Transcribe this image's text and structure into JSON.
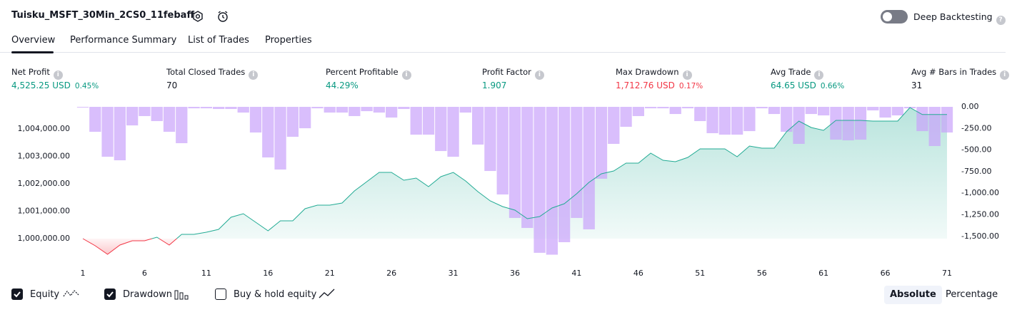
{
  "header": {
    "title": "Tuisku_MSFT_30Min_2CS0_11febaff",
    "toggle_label": "Deep Backtesting"
  },
  "tabs": [
    "Overview",
    "Performance Summary",
    "List of Trades",
    "Properties"
  ],
  "metrics": [
    {
      "label": "Net Profit",
      "value": "4,525.25 USD",
      "percent": "0.45%",
      "color": "#089981"
    },
    {
      "label": "Total Closed Trades",
      "value": "70",
      "color": "#131722"
    },
    {
      "label": "Percent Profitable",
      "value": "44.29%",
      "color": "#089981"
    },
    {
      "label": "Profit Factor",
      "value": "1.907",
      "color": "#089981"
    },
    {
      "label": "Max Drawdown",
      "value": "1,712.76 USD",
      "percent": "0.17%",
      "color": "#f23645"
    },
    {
      "label": "Avg Trade",
      "value": "64.65 USD",
      "percent": "0.66%",
      "color": "#089981"
    },
    {
      "label": "Avg # Bars in Trades",
      "value": "31",
      "color": "#131722"
    }
  ],
  "chart_data": {
    "type": "equity-drawdown",
    "x": [
      1,
      2,
      3,
      4,
      5,
      6,
      7,
      8,
      9,
      10,
      11,
      12,
      13,
      14,
      15,
      16,
      17,
      18,
      19,
      20,
      21,
      22,
      23,
      24,
      25,
      26,
      27,
      28,
      29,
      30,
      31,
      32,
      33,
      34,
      35,
      36,
      37,
      38,
      39,
      40,
      41,
      42,
      43,
      44,
      45,
      46,
      47,
      48,
      49,
      50,
      51,
      52,
      53,
      54,
      55,
      56,
      57,
      58,
      59,
      60,
      61,
      62,
      63,
      64,
      65,
      66,
      67,
      68,
      69,
      70,
      71
    ],
    "series": [
      {
        "name": "Equity",
        "color": "#22ab94",
        "negative_color": "#f23645",
        "axis": "y",
        "values": [
          1000000,
          999740,
          999430,
          999766,
          999922,
          999922,
          1000052,
          999766,
          1000156,
          1000156,
          1000234,
          1000338,
          1000779,
          1000909,
          1000597,
          1000286,
          1000649,
          1000649,
          1001091,
          1001221,
          1001221,
          1001299,
          1001740,
          1002078,
          1002416,
          1002416,
          1002130,
          1002208,
          1001896,
          1002260,
          1002416,
          1002104,
          1001714,
          1001377,
          1001169,
          1001039,
          1000727,
          1000805,
          1001117,
          1001273,
          1001636,
          1002052,
          1002364,
          1002468,
          1002753,
          1002753,
          1003117,
          1002857,
          1002805,
          1002961,
          1003273,
          1003273,
          1003273,
          1002987,
          1003377,
          1003299,
          1003299,
          1003896,
          1004286,
          1004052,
          1003948,
          1004312,
          1004312,
          1004312,
          1004286,
          1004286,
          1004286,
          1004779,
          1004525,
          1004525,
          1004525.25
        ]
      },
      {
        "name": "Drawdown",
        "color": "#c9a2fb",
        "axis": "y2",
        "values": [
          0,
          -289,
          -578,
          -619,
          -215,
          -107,
          -165,
          -289,
          -421,
          -17,
          -17,
          -25,
          -25,
          -66,
          -297,
          -586,
          -726,
          -347,
          -248,
          -17,
          -66,
          -66,
          -107,
          -50,
          -66,
          -124,
          -25,
          -322,
          -322,
          -512,
          -578,
          -66,
          -437,
          -743,
          -1015,
          -1287,
          -1403,
          -1691,
          -1712.76,
          -1568,
          -1287,
          -1419,
          -833,
          -429,
          -231,
          -107,
          -17,
          -17,
          -83,
          -17,
          -165,
          -305,
          -322,
          -322,
          -281,
          -17,
          -83,
          -289,
          -429,
          -83,
          -99,
          -380,
          -388,
          -380,
          -41,
          -124,
          -99,
          -17,
          -281,
          -454,
          -297
        ]
      }
    ],
    "buy_hold_label": "Buy & hold equity",
    "xlim": [
      1,
      71
    ],
    "xticks": [
      1,
      6,
      11,
      16,
      21,
      26,
      31,
      36,
      41,
      46,
      51,
      56,
      61,
      66,
      71
    ],
    "ylim": [
      999351,
      1004805
    ],
    "yticks": [
      {
        "value": 1000000,
        "label": "1,000,000.00"
      },
      {
        "value": 1001000,
        "label": "1,001,000.00"
      },
      {
        "value": 1002000,
        "label": "1,002,000.00"
      },
      {
        "value": 1003000,
        "label": "1,003,000.00"
      },
      {
        "value": 1004000,
        "label": "1,004,000.00"
      }
    ],
    "y2lim": [
      -1733,
      0
    ],
    "y2ticks": [
      {
        "value": 0,
        "label": "0.00"
      },
      {
        "value": -250,
        "label": "-250.00"
      },
      {
        "value": -500,
        "label": "-500.00"
      },
      {
        "value": -750,
        "label": "-750.00"
      },
      {
        "value": -1000,
        "label": "-1,000.00"
      },
      {
        "value": -1250,
        "label": "-1,250.00"
      },
      {
        "value": -1500,
        "label": "-1,500.00"
      }
    ]
  },
  "buttons": [
    "Absolute",
    "Percentage"
  ]
}
